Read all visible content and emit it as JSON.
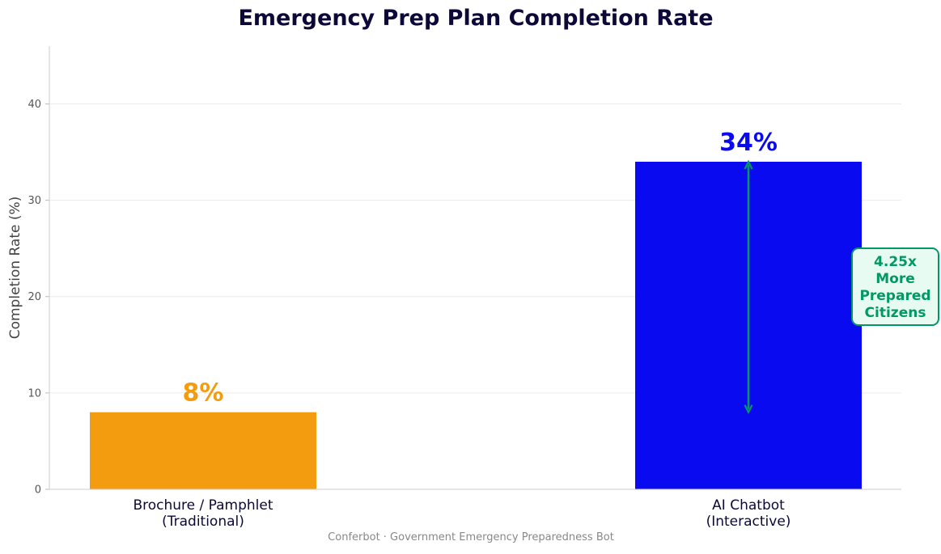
{
  "chart_data": {
    "type": "bar",
    "title": "Emergency Prep Plan Completion Rate",
    "xlabel": "",
    "ylabel": "Completion Rate (%)",
    "ylim": [
      0,
      46
    ],
    "yticks": [
      0,
      10,
      20,
      30,
      40
    ],
    "grid": true,
    "categories": [
      [
        "Brochure / Pamphlet",
        "(Traditional)"
      ],
      [
        "AI Chatbot",
        "(Interactive)"
      ]
    ],
    "values": [
      8,
      34
    ],
    "value_labels": [
      "8%",
      "34%"
    ],
    "colors": [
      "#f39c0f",
      "#0a0af0"
    ],
    "annotation": {
      "lines": [
        "4.25x",
        "More",
        "Prepared",
        "Citizens"
      ],
      "from_value": 8,
      "to_value": 34,
      "color": "#029866",
      "background": "#e8fbf3"
    },
    "footer": "Conferbot · Government Emergency Preparedness Bot"
  }
}
